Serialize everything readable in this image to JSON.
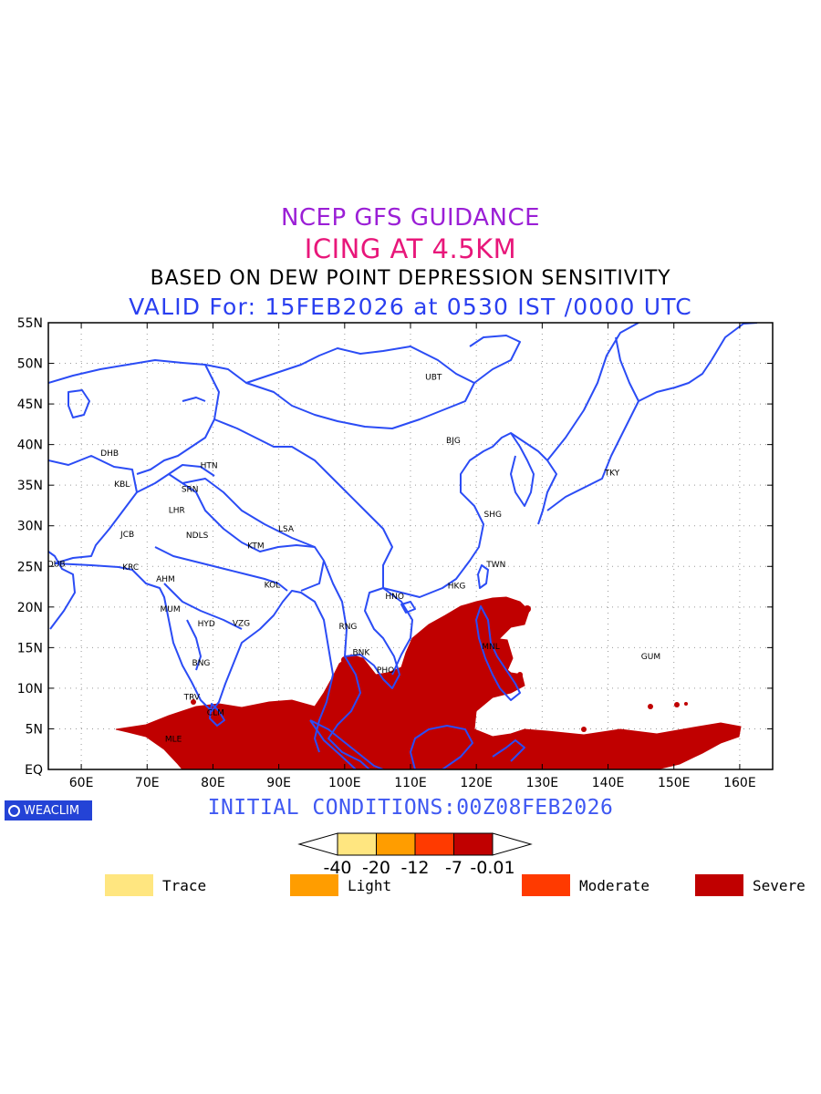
{
  "header": {
    "title": "NCEP GFS GUIDANCE",
    "subtitle": "ICING AT 4.5KM",
    "method": "BASED ON DEW POINT DEPRESSION SENSITIVITY",
    "valid": "VALID For: 15FEB2026 at 0530 IST /0000 UTC"
  },
  "map": {
    "lat_labels": [
      "55N",
      "50N",
      "45N",
      "40N",
      "35N",
      "30N",
      "25N",
      "20N",
      "15N",
      "10N",
      "5N",
      "EQ"
    ],
    "lon_labels": [
      "60E",
      "70E",
      "80E",
      "90E",
      "100E",
      "110E",
      "120E",
      "130E",
      "140E",
      "150E",
      "160E"
    ],
    "lat_range": [
      0,
      55
    ],
    "lon_range": [
      55,
      165
    ],
    "grid": "dotted",
    "coastline_color": "#2b4cf5",
    "severe_color": "#c00000",
    "stations": [
      {
        "name": "UBT",
        "lon": 113.5,
        "lat": 48.0
      },
      {
        "name": "BJG",
        "lon": 116.5,
        "lat": 40.2
      },
      {
        "name": "DHB",
        "lon": 64.3,
        "lat": 38.6
      },
      {
        "name": "HTN",
        "lon": 79.4,
        "lat": 37.1
      },
      {
        "name": "KBL",
        "lon": 66.2,
        "lat": 34.8
      },
      {
        "name": "SRN",
        "lon": 76.5,
        "lat": 34.2
      },
      {
        "name": "TKY",
        "lon": 140.6,
        "lat": 36.2
      },
      {
        "name": "LHR",
        "lon": 74.5,
        "lat": 31.6
      },
      {
        "name": "SHG",
        "lon": 122.5,
        "lat": 31.1
      },
      {
        "name": "LSA",
        "lon": 91.1,
        "lat": 29.3
      },
      {
        "name": "JCB",
        "lon": 67.0,
        "lat": 28.6
      },
      {
        "name": "NDLS",
        "lon": 77.6,
        "lat": 28.5
      },
      {
        "name": "KTM",
        "lon": 86.5,
        "lat": 27.2
      },
      {
        "name": "DUB",
        "lon": 56.2,
        "lat": 25.0
      },
      {
        "name": "TWN",
        "lon": 123.0,
        "lat": 24.9
      },
      {
        "name": "KRC",
        "lon": 67.5,
        "lat": 24.6
      },
      {
        "name": "AHM",
        "lon": 72.8,
        "lat": 23.1
      },
      {
        "name": "KOL",
        "lon": 89.0,
        "lat": 22.4
      },
      {
        "name": "HKG",
        "lon": 117.0,
        "lat": 22.3
      },
      {
        "name": "HNO",
        "lon": 107.6,
        "lat": 21.0
      },
      {
        "name": "MUM",
        "lon": 73.5,
        "lat": 19.4
      },
      {
        "name": "HYD",
        "lon": 79.0,
        "lat": 17.6
      },
      {
        "name": "VZG",
        "lon": 84.3,
        "lat": 17.7
      },
      {
        "name": "RNG",
        "lon": 100.5,
        "lat": 17.3
      },
      {
        "name": "MNL",
        "lon": 122.2,
        "lat": 14.8
      },
      {
        "name": "BNK",
        "lon": 102.5,
        "lat": 14.1
      },
      {
        "name": "GUM",
        "lon": 146.5,
        "lat": 13.6
      },
      {
        "name": "BNG",
        "lon": 78.2,
        "lat": 12.8
      },
      {
        "name": "PHO",
        "lon": 106.2,
        "lat": 11.9
      },
      {
        "name": "TRV",
        "lon": 76.8,
        "lat": 8.6
      },
      {
        "name": "CLM",
        "lon": 80.4,
        "lat": 6.7
      },
      {
        "name": "MLE",
        "lon": 74.0,
        "lat": 3.4
      }
    ]
  },
  "init_conditions": "INITIAL CONDITIONS:00Z08FEB2026",
  "logo": "WEACLIM",
  "colorbar": {
    "ticks": [
      "-40",
      "-20",
      "-12",
      "-7",
      "-0.01"
    ],
    "colors": [
      "#ffe680",
      "#ff9d00",
      "#ff3a00",
      "#c00000"
    ]
  },
  "legend": [
    {
      "label": "Trace",
      "color": "#ffe680"
    },
    {
      "label": "Light",
      "color": "#ff9d00"
    },
    {
      "label": "Moderate",
      "color": "#ff3a00"
    },
    {
      "label": "Severe",
      "color": "#c00000"
    }
  ]
}
